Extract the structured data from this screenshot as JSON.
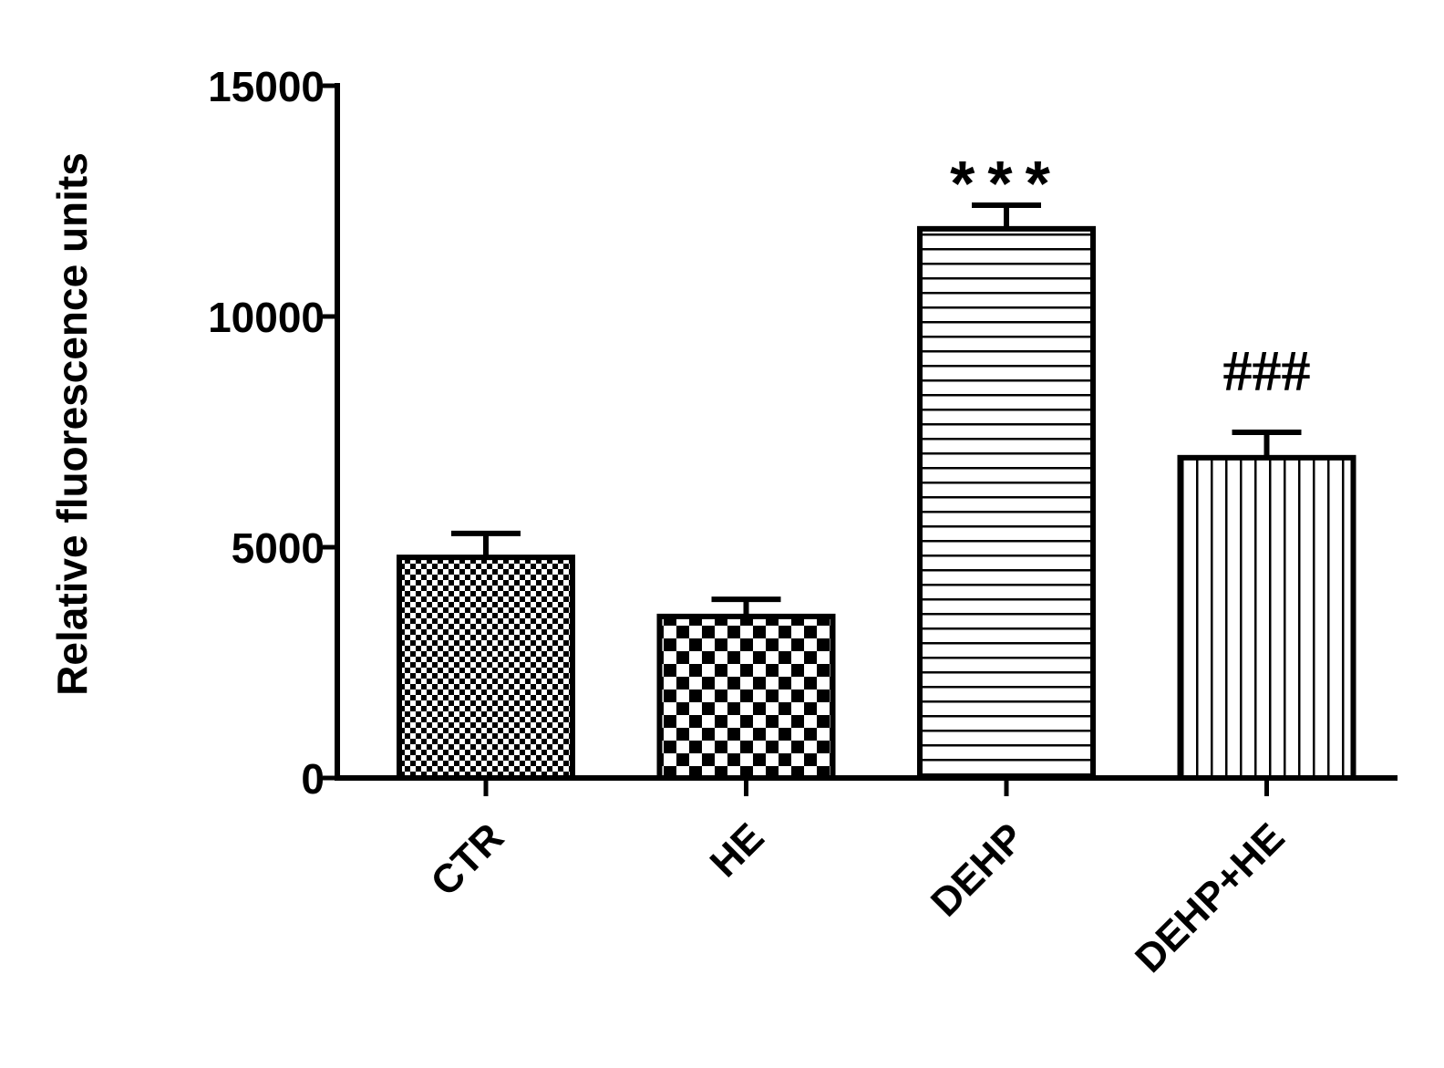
{
  "chart_data": {
    "type": "bar",
    "y_label": "Relative fluorescence units",
    "categories": [
      "CTR",
      "HE",
      "DEHP",
      "DEHP+HE"
    ],
    "values": [
      4780,
      3500,
      11900,
      6940
    ],
    "errors": [
      520,
      370,
      510,
      550
    ],
    "patterns": [
      "checker-fine",
      "checker",
      "horizontal",
      "vertical"
    ],
    "color": "#000000",
    "ylim": [
      0,
      15000
    ],
    "yticks": [
      0,
      5000,
      10000,
      15000
    ],
    "annotations": [
      {
        "category": "DEHP",
        "text": "***"
      },
      {
        "category": "DEHP+HE",
        "text": "###"
      }
    ]
  }
}
